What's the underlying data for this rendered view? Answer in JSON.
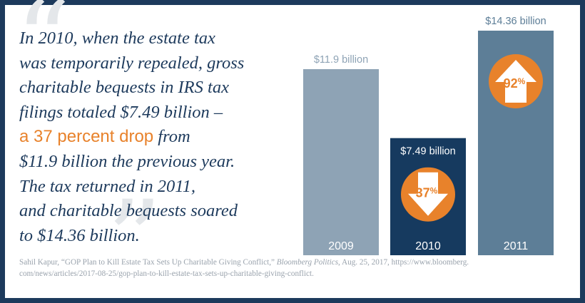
{
  "quote_lines": [
    "In 2010, when the estate tax",
    "was temporarily repealed, gross",
    "charitable bequests in IRS tax",
    "filings totaled $7.49 billion –"
  ],
  "highlight": "a 37 percent drop",
  "highlight_tail": " from",
  "quote_lines_after": [
    "$11.9 billion the previous year.",
    "The tax returned in 2011,",
    "and charitable bequests soared",
    "to $14.36 billion."
  ],
  "source": {
    "author": "Sahil Kapur, “GOP Plan to Kill Estate Tax Sets Up Charitable Giving Conflict,” ",
    "publication": "Bloomberg Politics",
    "rest": ", Aug. 25, 2017, https://www.bloomberg.",
    "line2": "com/news/articles/2017-08-25/gop-plan-to-kill-estate-tax-sets-up-charitable-giving-conflict."
  },
  "colors": {
    "navy": "#1d3a5c",
    "orange": "#e8822b",
    "bar_2009": "#8ea3b5",
    "bar_2010": "#163a5f",
    "bar_2011": "#5d7e97"
  },
  "chart_data": {
    "type": "bar",
    "categories": [
      "2009",
      "2010",
      "2011"
    ],
    "values": [
      11.9,
      7.49,
      14.36
    ],
    "value_labels": [
      "$11.9 billion",
      "$7.49 billion",
      "$14.36 billion"
    ],
    "changes": [
      null,
      {
        "label": "37%",
        "direction": "down",
        "icon": "down-arrow-icon"
      },
      {
        "label": "92%",
        "direction": "up",
        "icon": "up-arrow-icon"
      }
    ],
    "ylim": [
      0,
      14.36
    ],
    "grid": false
  }
}
